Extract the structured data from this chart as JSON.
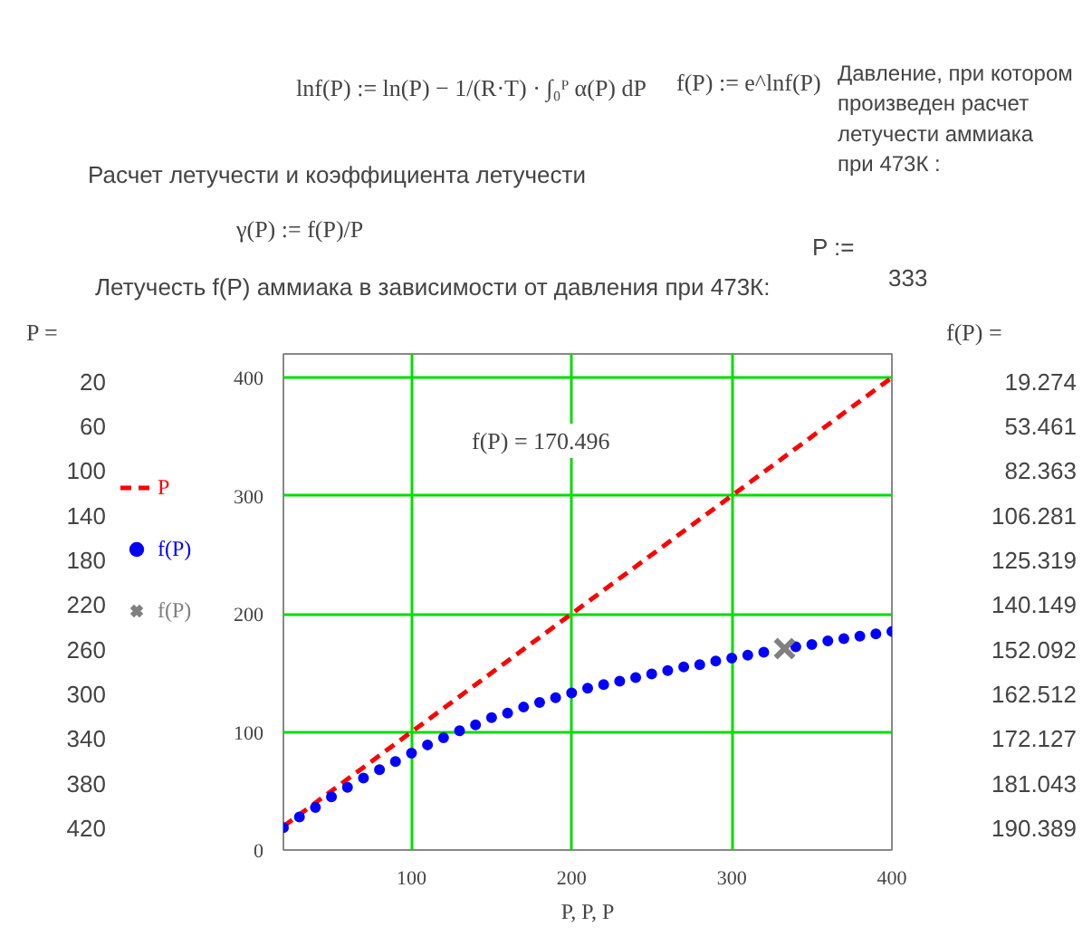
{
  "chart_data": {
    "type": "line",
    "title": "Летучесть f(P) аммиака в зависимости от давления при 473К:",
    "xlabel": "P, P, P",
    "xlim": [
      20,
      400
    ],
    "xticks": [
      100,
      200,
      300,
      400
    ],
    "ylim": [
      0,
      420
    ],
    "yticks": [
      0,
      100,
      200,
      300,
      400
    ],
    "grid": true,
    "legend": "left",
    "series": [
      {
        "name": "P",
        "line_style": "dashed",
        "color": "#ff0000",
        "x": [
          20,
          400
        ],
        "values": [
          20,
          400
        ]
      },
      {
        "name": "f(P)",
        "type": "scatter",
        "marker": "circle",
        "color": "#0000ff",
        "x": [
          20,
          30,
          40,
          50,
          60,
          70,
          80,
          90,
          100,
          110,
          120,
          130,
          140,
          150,
          160,
          170,
          180,
          190,
          200,
          210,
          220,
          230,
          240,
          250,
          260,
          270,
          280,
          290,
          300,
          310,
          320,
          330,
          340,
          350,
          360,
          370,
          380,
          390,
          400
        ],
        "values": [
          19,
          28,
          36,
          45,
          53,
          61,
          68,
          75,
          82,
          89,
          95,
          101,
          106,
          112,
          116,
          121,
          125,
          129,
          133,
          137,
          140,
          143,
          146,
          149,
          152,
          155,
          157,
          160,
          162.5,
          165,
          167.5,
          null,
          172,
          174,
          177,
          179,
          181,
          183,
          185
        ]
      },
      {
        "name": "f(P)",
        "type": "scatter",
        "marker": "cross",
        "color": "#808080",
        "x": [
          333
        ],
        "values": [
          170.496
        ]
      }
    ],
    "annotations": [
      "lnf(P) := ln(P) − 1/(R·T) · ∫₀ᴾ α(P) dP",
      "f(P) := e^lnf(P)",
      "Давление, при котором\nпроизведен расчет\nлетучести аммиака\nпри 473К :",
      "Расчет летучести и коэффициента летучести",
      "γ(P) := f(P)/P",
      "P :=",
      "333",
      "P =",
      "f(P) =",
      "f(P) = 170.496",
      "20",
      "60",
      "100",
      "140",
      "180",
      "220",
      "260",
      "300",
      "340",
      "380",
      "420",
      "19.274",
      "53.461",
      "82.363",
      "106.281",
      "125.319",
      "140.149",
      "152.092",
      "162.512",
      "172.127",
      "181.043",
      "190.389"
    ]
  }
}
